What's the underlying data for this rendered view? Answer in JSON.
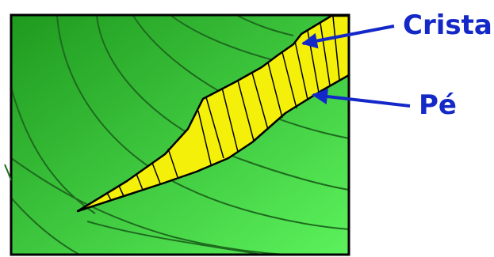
{
  "labels": {
    "crest": "Crista",
    "toe": "Pé"
  },
  "colors": {
    "terrain_light": "#5cf25c",
    "terrain_dark": "#1f9a1f",
    "contour": "#1e6b1e",
    "escarpment_fill": "#f5f00a",
    "outline": "#000000",
    "label_text": "#1428c8",
    "arrow": "#1428c8"
  },
  "icons": {
    "crest_pointer": "arrow-left-icon",
    "toe_pointer": "arrow-left-icon"
  }
}
